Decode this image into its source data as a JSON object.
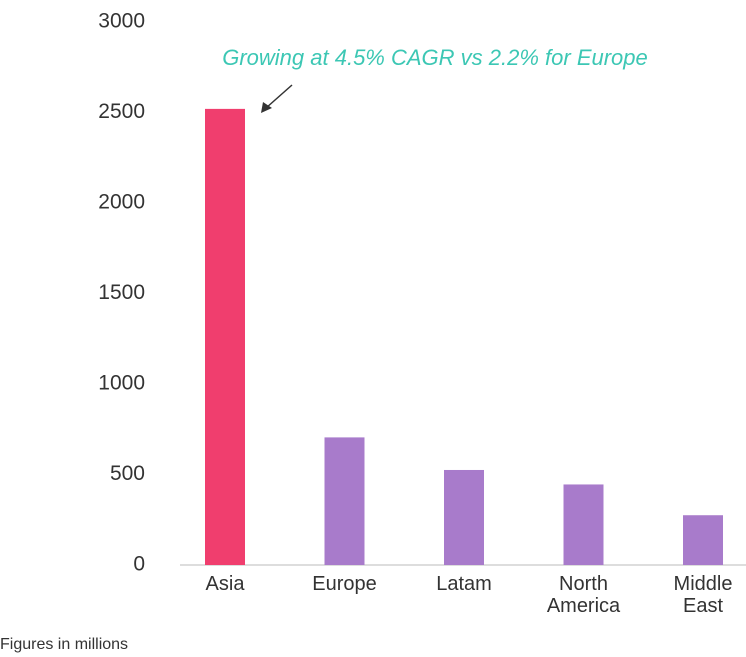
{
  "chart_data": {
    "type": "bar",
    "categories": [
      "Asia",
      "Europe",
      "Latam",
      "North America",
      "Middle East"
    ],
    "values": [
      2520,
      705,
      525,
      445,
      275
    ],
    "colors": [
      "#f03e6e",
      "#a87bcb",
      "#a87bcb",
      "#a87bcb",
      "#a87bcb"
    ],
    "ylim": [
      0,
      3000
    ],
    "yticks": [
      0,
      500,
      1000,
      1500,
      2000,
      2500,
      3000
    ],
    "grid": false,
    "annotation": "Growing at 4.5% CAGR vs 2.2% for Europe",
    "footnote": "Figures in millions"
  }
}
